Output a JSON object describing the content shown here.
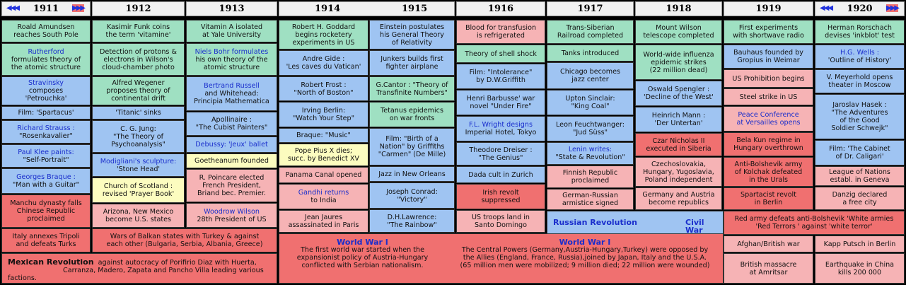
{
  "years": [
    "1911",
    "1912",
    "1913",
    "1914",
    "1915",
    "1916",
    "1917",
    "1918",
    "1919",
    "1920"
  ],
  "nav": {
    "prev": "◀◀◀",
    "next": "▶▶▶"
  },
  "colors": {
    "green": "#9fe0c2",
    "blue": "#9fc4f2",
    "pink": "#f6b3b5",
    "red": "#f07070",
    "yellow": "#fcfcbf",
    "link": "#1a2ecc"
  },
  "events": {
    "y1911": [
      [
        "Roald Amundsen",
        "reaches South Pole"
      ],
      [
        "Rutherford",
        "formulates theory of",
        "the atomic structure"
      ],
      [
        "Stravinsky",
        "composes",
        "'Petrouchka'"
      ],
      [
        "Film: 'Spartacus'"
      ],
      [
        "Richard Strauss :",
        "\"Rosenkavalier\""
      ],
      [
        "Paul Klee paints:",
        "\"Self-Portrait\""
      ],
      [
        "Georges Braque :",
        "\"Man with a Guitar\""
      ],
      [
        "Manchu dynasty falls",
        "Chinese Republic",
        "proclaimed"
      ],
      [
        "Italy annexes Tripoli",
        "and defeats Turks"
      ]
    ],
    "y1912": [
      [
        "Kasimir Funk coins",
        "the term 'vitamine'"
      ],
      [
        "Detection of protons &",
        "electrons in Wilson's",
        "cloud-chamber photo"
      ],
      [
        "Alfred Wegener",
        "proposes theory of",
        "continental drift"
      ],
      [
        "'Titanic' sinks"
      ],
      [
        "C. G. Jung:",
        "\"The Theory of",
        "Psychoanalysis\""
      ],
      [
        "Modigliani's sculpture:",
        "'Stone Head'"
      ],
      [
        "Church of Scotland :",
        "revised 'Prayer Book'"
      ],
      [
        "Arizona, New Mexico",
        "become U.S. states"
      ],
      [
        "Wars of Balkan states with Turkey & against",
        "each other (Bulgaria, Serbia, Albania, Greece)"
      ]
    ],
    "y1913": [
      [
        "Vitamin A isolated",
        "at Yale University"
      ],
      [
        "Niels Bohr formulates",
        "his own theory of the",
        "atomic structure"
      ],
      [
        "Bertrand Russell",
        "and Whitehead:",
        "Principia Mathematica"
      ],
      [
        "Apollinaire :",
        "\"The Cubist Painters\""
      ],
      [
        "Debussy: 'Jeux' ballet"
      ],
      [
        "Goetheanum founded"
      ],
      [
        "R. Poincare elected",
        "French President,",
        "Briand bec. Premier."
      ],
      [
        "Woodrow Wilson",
        "28th President of US"
      ]
    ],
    "y1914": [
      [
        "Robert H. Goddard",
        "begins rocketery",
        "experiments in US"
      ],
      [
        "Andre Gide :",
        "'Les caves du Vatican'"
      ],
      [
        "Robert Frost :",
        "\"North of Boston\""
      ],
      [
        "Irving Berlin:",
        "\"Watch Your Step\""
      ],
      [
        "Braque: \"Music\""
      ],
      [
        "Pope Pius X dies;",
        "succ. by Benedict XV"
      ],
      [
        "Panama Canal opened"
      ],
      [
        "Gandhi returns",
        "to India"
      ],
      [
        "Jean Jaures",
        "assassinated in Paris"
      ]
    ],
    "y1915": [
      [
        "Einstein postulates",
        "his General Theory",
        "of Relativity"
      ],
      [
        "Junkers builds first",
        "fighter airplane"
      ],
      [
        "G.Cantor : \"Theory of",
        "Transfinite Numbers\""
      ],
      [
        "Tetanus epidemics",
        "on war fronts"
      ],
      [
        "Film: \"Birth of a",
        "Nation\" by Griffiths",
        "\"Carmen\" (De Mille)"
      ],
      [
        "Jazz in New Orleans"
      ],
      [
        "Joseph Conrad:",
        "\"Victory\""
      ],
      [
        "D.H.Lawrence:",
        "\"The Rainbow\""
      ]
    ],
    "y1916": [
      [
        "Blood for transfusion",
        "is refrigerated"
      ],
      [
        "Theory of shell shock"
      ],
      [
        "Film: \"Intolerance\"",
        "by D.W.Griffith"
      ],
      [
        "Henri Barbusse' war",
        "novel \"Under Fire\""
      ],
      [
        "F.L. Wright designs",
        "Imperial Hotel, Tokyo"
      ],
      [
        "Theodore Dreiser :",
        "\"The Genius\""
      ],
      [
        "Dada cult in Zurich"
      ],
      [
        "Irish revolt",
        "suppressed"
      ],
      [
        "US troops land in",
        "Santo Domingo"
      ]
    ],
    "y1917": [
      [
        "Trans-Siberian",
        "Railroad completed"
      ],
      [
        "Tanks introduced"
      ],
      [
        "Chicago becomes",
        "jazz center"
      ],
      [
        "Upton Sinclair:",
        "\"King Coal\""
      ],
      [
        "Leon Feuchtwanger:",
        "\"Jud Süss\""
      ],
      [
        "Lenin writes:",
        "\"State & Revolution\""
      ],
      [
        "Finnish Republic",
        "proclaimed"
      ],
      [
        "German-Russian",
        "armistice signed"
      ]
    ],
    "y1918": [
      [
        "Mount Wilson",
        "telescope completed"
      ],
      [
        "World-wide influenza",
        "epidemic strikes",
        "(22 million dead)"
      ],
      [
        "Oswald Spengler :",
        "'Decline of the West'"
      ],
      [
        "Heinrich Mann :",
        "'Der Untertan'"
      ],
      [
        "Czar Nicholas II",
        "executed in Siberia"
      ],
      [
        "Czechoslovakia,",
        "Hungary, Yugoslavia,",
        "Poland independent"
      ],
      [
        "Germany and Austria",
        "become republics"
      ]
    ],
    "y1919": [
      [
        "First experiments",
        "with shortwave radio"
      ],
      [
        "Bauhaus founded by",
        "Gropius in Weimar"
      ],
      [
        "US Prohibition begins"
      ],
      [
        "Steel strike in US"
      ],
      [
        "Peace Conference",
        "at Versailles opens"
      ],
      [
        "Bela Kun regime in",
        "Hungary overthrown"
      ],
      [
        "Anti-Bolshevik army",
        "of Kolchak defeated",
        "in the Urals"
      ],
      [
        "Spartacist revolt",
        "in Berlin"
      ],
      [
        "Afghan/British war"
      ],
      [
        "British massacre",
        "at Amritsar"
      ]
    ],
    "y1920": [
      [
        "Herman Rorschach",
        "devises 'inkblot' test"
      ],
      [
        "H.G. Wells :",
        "'Outline of History'"
      ],
      [
        "V. Meyerhold opens",
        "theater in Moscow"
      ],
      [
        "Jaroslav Hasek :",
        "\"The Adventures",
        "of the Good",
        "Soldier Schwejk\""
      ],
      [
        "Film: 'The Cabinet",
        "of Dr. Caligari'"
      ],
      [
        "League of Nations",
        "establ. in Geneva"
      ],
      [
        "Danzig declared",
        "a free city"
      ],
      [
        "Kapp Putsch in Berlin"
      ],
      [
        "Earthquake in China",
        "kills 200 000"
      ]
    ]
  },
  "spans": {
    "mexican_title": "Mexican Revolution",
    "mexican_text1": "against autocracy of Porifirio Diaz with Huerta,",
    "mexican_text2": "Carranza, Madero, Zapata and Pancho Villa leading various factions.",
    "ww1_title_a": "World War I",
    "ww1_text_a": [
      "The first world war started when the",
      "expansionist policy of Austria-Hungary",
      "conflicted with Serbian nationalism."
    ],
    "ww1_title_b": "World War I",
    "ww1_text_b": [
      "The Central Powers (Germany,Austria-Hungary,Turkey) were opposed by",
      "the Allies (England, France, Russia),joined by Japan, Italy and the U.S.A.",
      "(65 million men were mobilized; 9 million died; 22 million were wounded)"
    ],
    "russian_rev": "Russian Revolution",
    "civil_war": "Civil War",
    "civil_text": [
      "Red army defeats anti-Bolshevik 'White armies",
      "'Red Terrors ' against 'white terror'"
    ]
  }
}
